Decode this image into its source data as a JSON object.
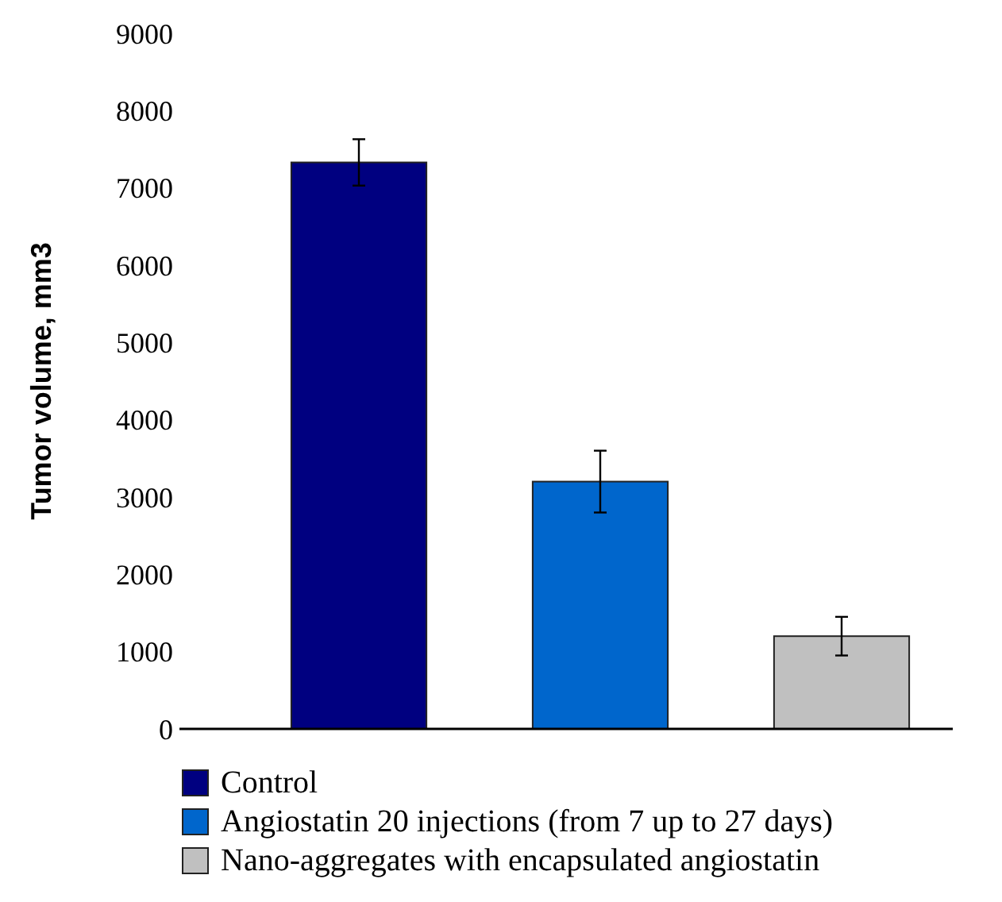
{
  "chart_data": {
    "type": "bar",
    "ylabel": "Tumor volume, mm3",
    "categories": [
      null,
      null,
      null
    ],
    "ylim": [
      0,
      9000
    ],
    "yticks": [
      0,
      1000,
      2000,
      3000,
      4000,
      5000,
      6000,
      7000,
      8000,
      9000
    ],
    "legend": "bottom",
    "grid": false,
    "series": [
      {
        "name": "Control",
        "color": "#000080",
        "values": [
          7330,
          null,
          null
        ],
        "errors": [
          300,
          null,
          null
        ]
      },
      {
        "name": "Angiostatin 20 injections (from 7 up to 27 days)",
        "color": "#0066cc",
        "values": [
          null,
          3200,
          null
        ],
        "errors": [
          null,
          400,
          null
        ]
      },
      {
        "name": "Nano-aggregates with encapsulated angiostatin",
        "color": "#c0c0c0",
        "values": [
          null,
          null,
          1200
        ],
        "errors": [
          null,
          null,
          250
        ]
      }
    ]
  }
}
